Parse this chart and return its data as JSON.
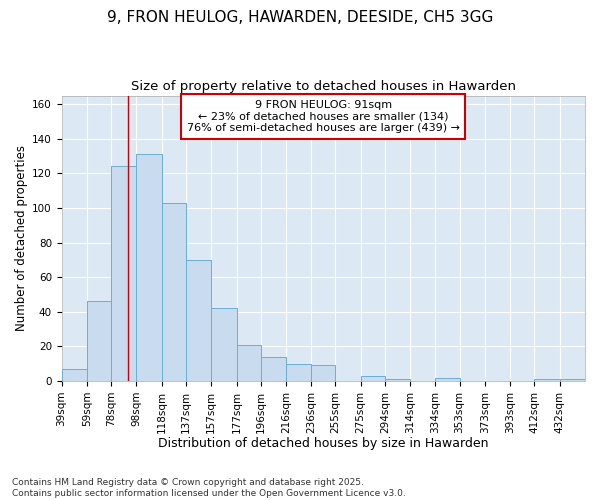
{
  "title": "9, FRON HEULOG, HAWARDEN, DEESIDE, CH5 3GG",
  "subtitle": "Size of property relative to detached houses in Hawarden",
  "xlabel": "Distribution of detached houses by size in Hawarden",
  "ylabel": "Number of detached properties",
  "bar_color": "#c9dcef",
  "bar_edge_color": "#6aaed6",
  "background_color": "#dce9f5",
  "plot_bg_color": "#dce9f5",
  "fig_bg_color": "#ffffff",
  "grid_color": "#ffffff",
  "annotation_box_color": "#ffffff",
  "annotation_border_color": "#cc0000",
  "red_line_x": 91,
  "categories": [
    "39sqm",
    "59sqm",
    "78sqm",
    "98sqm",
    "118sqm",
    "137sqm",
    "157sqm",
    "177sqm",
    "196sqm",
    "216sqm",
    "236sqm",
    "255sqm",
    "275sqm",
    "294sqm",
    "314sqm",
    "334sqm",
    "353sqm",
    "373sqm",
    "393sqm",
    "412sqm",
    "432sqm"
  ],
  "bin_edges": [
    39,
    59,
    78,
    98,
    118,
    137,
    157,
    177,
    196,
    216,
    236,
    255,
    275,
    294,
    314,
    334,
    353,
    373,
    393,
    412,
    432,
    452
  ],
  "values": [
    7,
    46,
    124,
    131,
    103,
    70,
    42,
    21,
    14,
    10,
    9,
    0,
    3,
    1,
    0,
    2,
    0,
    0,
    0,
    1,
    1
  ],
  "ylim": [
    0,
    165
  ],
  "yticks": [
    0,
    20,
    40,
    60,
    80,
    100,
    120,
    140,
    160
  ],
  "annotation_text": "9 FRON HEULOG: 91sqm\n← 23% of detached houses are smaller (134)\n76% of semi-detached houses are larger (439) →",
  "footer_text": "Contains HM Land Registry data © Crown copyright and database right 2025.\nContains public sector information licensed under the Open Government Licence v3.0.",
  "title_fontsize": 11,
  "subtitle_fontsize": 9.5,
  "xlabel_fontsize": 9,
  "ylabel_fontsize": 8.5,
  "tick_fontsize": 7.5,
  "annotation_fontsize": 8,
  "footer_fontsize": 6.5
}
